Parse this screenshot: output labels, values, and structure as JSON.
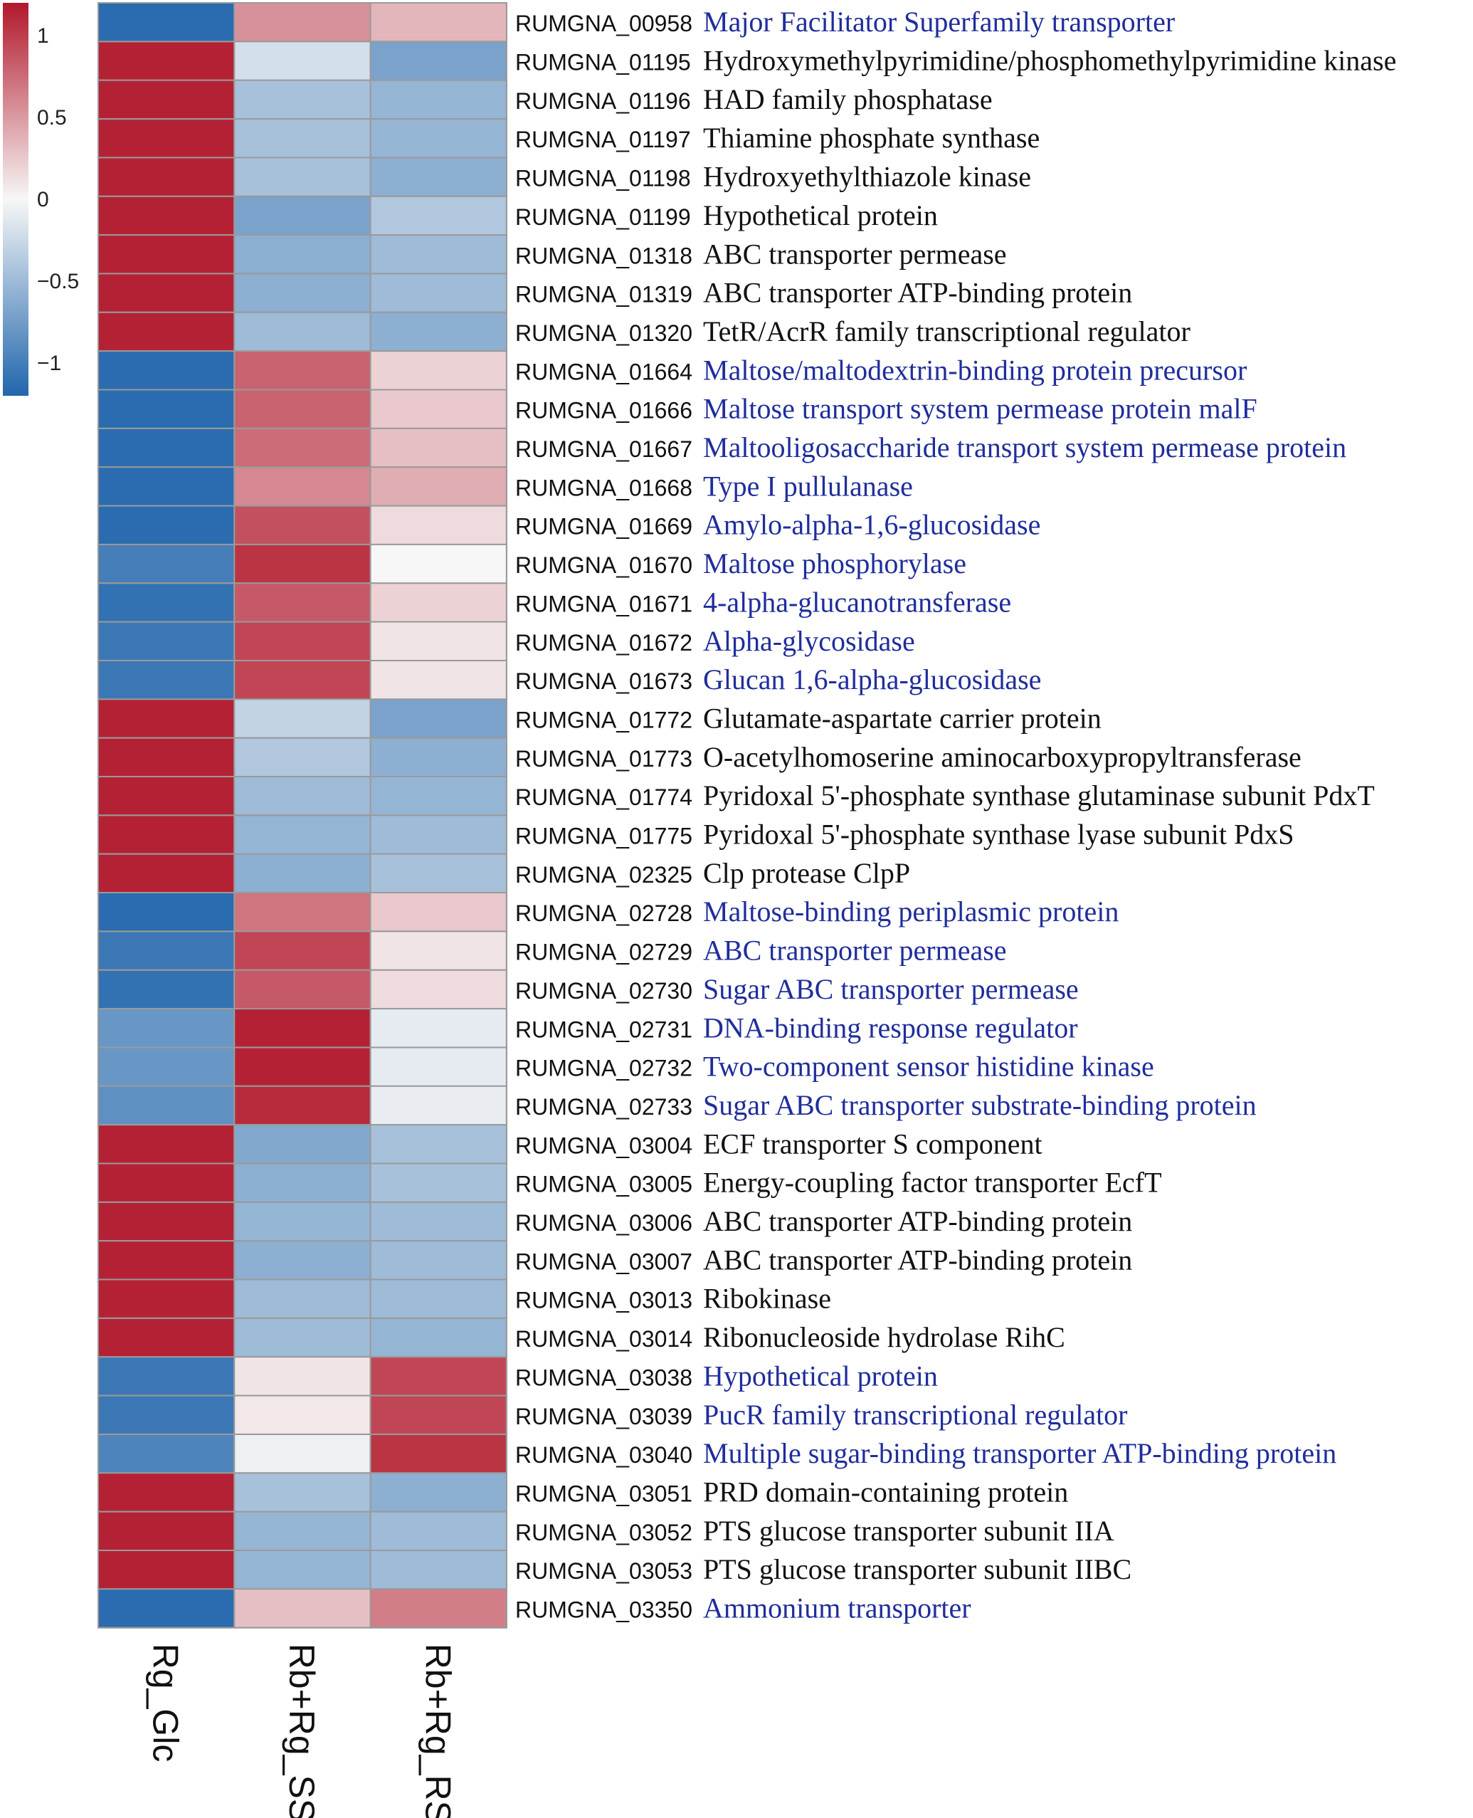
{
  "chart_data": {
    "type": "heatmap",
    "title": "",
    "columns": [
      "Rg_Glc",
      "Rb+Rg_SS",
      "Rb+Rg_RS"
    ],
    "colorbar": {
      "ticks": [
        1,
        0.5,
        0,
        -0.5,
        -1
      ],
      "tick_labels": [
        "1",
        "0.5",
        "0",
        "−0.5",
        "−1"
      ],
      "range": [
        -1.2,
        1.2
      ],
      "colors": [
        "#2166ac",
        "#f7f7f7",
        "#b2182b"
      ]
    },
    "rows": [
      {
        "id": "RUMGNA_00958",
        "desc": "Major Facilitator Superfamily transporter",
        "highlight": true,
        "values": [
          -1.15,
          0.55,
          0.35
        ]
      },
      {
        "id": "RUMGNA_01195",
        "desc": "Hydroxymethylpyrimidine/phosphomethylpyrimidine kinase",
        "highlight": false,
        "values": [
          1.15,
          -0.2,
          -0.7
        ]
      },
      {
        "id": "RUMGNA_01196",
        "desc": "HAD family phosphatase",
        "highlight": false,
        "values": [
          1.15,
          -0.45,
          -0.55
        ]
      },
      {
        "id": "RUMGNA_01197",
        "desc": "Thiamine phosphate synthase",
        "highlight": false,
        "values": [
          1.15,
          -0.45,
          -0.55
        ]
      },
      {
        "id": "RUMGNA_01198",
        "desc": "Hydroxyethylthiazole kinase",
        "highlight": false,
        "values": [
          1.15,
          -0.45,
          -0.6
        ]
      },
      {
        "id": "RUMGNA_01199",
        "desc": "Hypothetical protein",
        "highlight": false,
        "values": [
          1.15,
          -0.7,
          -0.4
        ]
      },
      {
        "id": "RUMGNA_01318",
        "desc": "ABC transporter permease",
        "highlight": false,
        "values": [
          1.15,
          -0.6,
          -0.5
        ]
      },
      {
        "id": "RUMGNA_01319",
        "desc": "ABC transporter ATP-binding protein",
        "highlight": false,
        "values": [
          1.15,
          -0.6,
          -0.5
        ]
      },
      {
        "id": "RUMGNA_01320",
        "desc": "TetR/AcrR family transcriptional regulator",
        "highlight": false,
        "values": [
          1.15,
          -0.5,
          -0.6
        ]
      },
      {
        "id": "RUMGNA_01664",
        "desc": "Maltose/maltodextrin-binding protein precursor",
        "highlight": true,
        "values": [
          -1.15,
          0.8,
          0.2
        ]
      },
      {
        "id": "RUMGNA_01666",
        "desc": "Maltose transport system permease protein malF",
        "highlight": true,
        "values": [
          -1.15,
          0.8,
          0.25
        ]
      },
      {
        "id": "RUMGNA_01667",
        "desc": "Maltooligosaccharide transport system permease protein",
        "highlight": true,
        "values": [
          -1.15,
          0.75,
          0.3
        ]
      },
      {
        "id": "RUMGNA_01668",
        "desc": "Type I pullulanase",
        "highlight": true,
        "values": [
          -1.15,
          0.6,
          0.4
        ]
      },
      {
        "id": "RUMGNA_01669",
        "desc": "Amylo-alpha-1,6-glucosidase",
        "highlight": true,
        "values": [
          -1.15,
          0.9,
          0.15
        ]
      },
      {
        "id": "RUMGNA_01670",
        "desc": "Maltose phosphorylase",
        "highlight": true,
        "values": [
          -1.0,
          1.05,
          0.0
        ]
      },
      {
        "id": "RUMGNA_01671",
        "desc": "4-alpha-glucanotransferase",
        "highlight": true,
        "values": [
          -1.1,
          0.85,
          0.2
        ]
      },
      {
        "id": "RUMGNA_01672",
        "desc": "Alpha-glycosidase",
        "highlight": true,
        "values": [
          -1.05,
          0.95,
          0.1
        ]
      },
      {
        "id": "RUMGNA_01673",
        "desc": "Glucan 1,6-alpha-glucosidase",
        "highlight": true,
        "values": [
          -1.05,
          0.95,
          0.1
        ]
      },
      {
        "id": "RUMGNA_01772",
        "desc": "Glutamate-aspartate carrier protein",
        "highlight": false,
        "values": [
          1.15,
          -0.3,
          -0.7
        ]
      },
      {
        "id": "RUMGNA_01773",
        "desc": "O-acetylhomoserine aminocarboxypropyltransferase",
        "highlight": false,
        "values": [
          1.15,
          -0.4,
          -0.6
        ]
      },
      {
        "id": "RUMGNA_01774",
        "desc": "Pyridoxal 5'-phosphate synthase glutaminase subunit PdxT",
        "highlight": false,
        "values": [
          1.15,
          -0.5,
          -0.55
        ]
      },
      {
        "id": "RUMGNA_01775",
        "desc": "Pyridoxal 5'-phosphate synthase lyase subunit PdxS",
        "highlight": false,
        "values": [
          1.15,
          -0.55,
          -0.5
        ]
      },
      {
        "id": "RUMGNA_02325",
        "desc": "Clp protease ClpP",
        "highlight": false,
        "values": [
          1.15,
          -0.6,
          -0.45
        ]
      },
      {
        "id": "RUMGNA_02728",
        "desc": "Maltose-binding periplasmic protein",
        "highlight": true,
        "values": [
          -1.15,
          0.7,
          0.25
        ]
      },
      {
        "id": "RUMGNA_02729",
        "desc": "ABC transporter permease",
        "highlight": true,
        "values": [
          -1.05,
          0.95,
          0.1
        ]
      },
      {
        "id": "RUMGNA_02730",
        "desc": "Sugar ABC transporter permease",
        "highlight": true,
        "values": [
          -1.1,
          0.85,
          0.15
        ]
      },
      {
        "id": "RUMGNA_02731",
        "desc": "DNA-binding response regulator",
        "highlight": true,
        "values": [
          -0.8,
          1.15,
          -0.1
        ]
      },
      {
        "id": "RUMGNA_02732",
        "desc": "Two-component sensor histidine kinase",
        "highlight": true,
        "values": [
          -0.8,
          1.15,
          -0.1
        ]
      },
      {
        "id": "RUMGNA_02733",
        "desc": "Sugar ABC transporter substrate-binding protein",
        "highlight": true,
        "values": [
          -0.85,
          1.1,
          -0.08
        ]
      },
      {
        "id": "RUMGNA_03004",
        "desc": "ECF transporter S component",
        "highlight": false,
        "values": [
          1.15,
          -0.65,
          -0.45
        ]
      },
      {
        "id": "RUMGNA_03005",
        "desc": "Energy-coupling factor transporter EcfT",
        "highlight": false,
        "values": [
          1.15,
          -0.6,
          -0.45
        ]
      },
      {
        "id": "RUMGNA_03006",
        "desc": "ABC transporter ATP-binding protein",
        "highlight": false,
        "values": [
          1.15,
          -0.55,
          -0.5
        ]
      },
      {
        "id": "RUMGNA_03007",
        "desc": "ABC transporter ATP-binding protein",
        "highlight": false,
        "values": [
          1.15,
          -0.6,
          -0.5
        ]
      },
      {
        "id": "RUMGNA_03013",
        "desc": "Ribokinase",
        "highlight": false,
        "values": [
          1.15,
          -0.5,
          -0.5
        ]
      },
      {
        "id": "RUMGNA_03014",
        "desc": "Ribonucleoside hydrolase RihC",
        "highlight": false,
        "values": [
          1.15,
          -0.5,
          -0.55
        ]
      },
      {
        "id": "RUMGNA_03038",
        "desc": "Hypothetical protein",
        "highlight": true,
        "values": [
          -1.05,
          0.1,
          0.95
        ]
      },
      {
        "id": "RUMGNA_03039",
        "desc": "PucR family transcriptional regulator",
        "highlight": true,
        "values": [
          -1.05,
          0.08,
          0.95
        ]
      },
      {
        "id": "RUMGNA_03040",
        "desc": "Multiple sugar-binding transporter ATP-binding protein",
        "highlight": true,
        "values": [
          -0.95,
          -0.05,
          1.05
        ]
      },
      {
        "id": "RUMGNA_03051",
        "desc": "PRD domain-containing protein",
        "highlight": false,
        "values": [
          1.15,
          -0.45,
          -0.6
        ]
      },
      {
        "id": "RUMGNA_03052",
        "desc": "PTS glucose transporter subunit IIA",
        "highlight": false,
        "values": [
          1.15,
          -0.55,
          -0.5
        ]
      },
      {
        "id": "RUMGNA_03053",
        "desc": "PTS glucose transporter subunit IIBC",
        "highlight": false,
        "values": [
          1.15,
          -0.55,
          -0.5
        ]
      },
      {
        "id": "RUMGNA_03350",
        "desc": "Ammonium transporter",
        "highlight": true,
        "values": [
          -1.15,
          0.3,
          0.65
        ]
      }
    ]
  }
}
